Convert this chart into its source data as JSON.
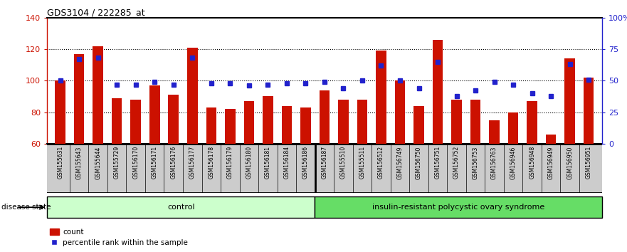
{
  "title": "GDS3104 / 222285_at",
  "samples": [
    "GSM155631",
    "GSM155643",
    "GSM155644",
    "GSM155729",
    "GSM156170",
    "GSM156171",
    "GSM156176",
    "GSM156177",
    "GSM156178",
    "GSM156179",
    "GSM156180",
    "GSM156181",
    "GSM156184",
    "GSM156186",
    "GSM156187",
    "GSM155510",
    "GSM155511",
    "GSM156512",
    "GSM156749",
    "GSM156750",
    "GSM156751",
    "GSM156752",
    "GSM156753",
    "GSM156763",
    "GSM156946",
    "GSM156948",
    "GSM156949",
    "GSM156950",
    "GSM156951"
  ],
  "bar_values": [
    100,
    117,
    122,
    89,
    88,
    97,
    91,
    121,
    83,
    82,
    87,
    90,
    84,
    83,
    94,
    88,
    88,
    119,
    100,
    84,
    126,
    88,
    88,
    75,
    80,
    87,
    66,
    114,
    102
  ],
  "percentile_values": [
    50,
    67,
    68,
    47,
    47,
    49,
    47,
    68,
    48,
    48,
    46,
    47,
    48,
    48,
    49,
    44,
    50,
    62,
    50,
    44,
    65,
    38,
    42,
    49,
    47,
    40,
    38,
    63,
    51
  ],
  "group_labels": [
    "control",
    "insulin-resistant polycystic ovary syndrome"
  ],
  "group_control_count": 14,
  "group_disease_count": 15,
  "ylim_left": [
    60,
    140
  ],
  "ylim_right": [
    0,
    100
  ],
  "yticks_left": [
    60,
    80,
    100,
    120,
    140
  ],
  "yticks_right": [
    0,
    25,
    50,
    75,
    100
  ],
  "bar_color": "#cc1100",
  "percentile_color": "#2222cc",
  "control_bg": "#ccffcc",
  "disease_bg": "#66dd66",
  "label_row_bg": "#cccccc"
}
